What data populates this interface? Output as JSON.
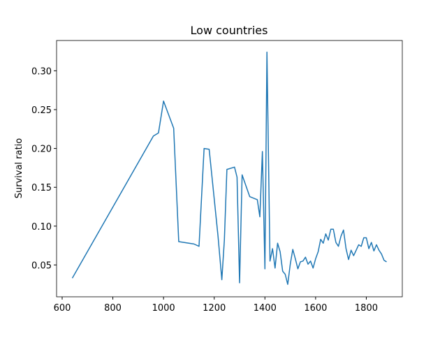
{
  "chart_data": {
    "type": "line",
    "title": "Low countries",
    "ylabel": "Survival ratio",
    "x": [
      640,
      960,
      980,
      1000,
      1040,
      1060,
      1120,
      1140,
      1160,
      1180,
      1215,
      1230,
      1240,
      1250,
      1280,
      1290,
      1300,
      1310,
      1340,
      1370,
      1380,
      1390,
      1400,
      1408,
      1420,
      1430,
      1440,
      1450,
      1460,
      1470,
      1480,
      1490,
      1500,
      1510,
      1520,
      1530,
      1540,
      1550,
      1560,
      1570,
      1580,
      1590,
      1600,
      1610,
      1620,
      1630,
      1640,
      1650,
      1660,
      1670,
      1680,
      1690,
      1700,
      1710,
      1720,
      1730,
      1740,
      1750,
      1760,
      1770,
      1780,
      1790,
      1800,
      1810,
      1820,
      1830,
      1840,
      1850,
      1860,
      1870,
      1880
    ],
    "series": [
      {
        "color": "#1f77b4",
        "values": [
          0.033,
          0.216,
          0.22,
          0.261,
          0.226,
          0.08,
          0.077,
          0.074,
          0.2,
          0.199,
          0.087,
          0.031,
          0.082,
          0.173,
          0.176,
          0.163,
          0.027,
          0.166,
          0.138,
          0.134,
          0.112,
          0.196,
          0.045,
          0.324,
          0.055,
          0.071,
          0.046,
          0.078,
          0.067,
          0.042,
          0.038,
          0.025,
          0.051,
          0.07,
          0.058,
          0.045,
          0.054,
          0.055,
          0.06,
          0.051,
          0.055,
          0.046,
          0.058,
          0.067,
          0.083,
          0.078,
          0.09,
          0.082,
          0.096,
          0.096,
          0.079,
          0.074,
          0.087,
          0.095,
          0.071,
          0.057,
          0.069,
          0.062,
          0.069,
          0.076,
          0.074,
          0.085,
          0.085,
          0.071,
          0.079,
          0.068,
          0.076,
          0.069,
          0.064,
          0.056,
          0.054
        ]
      }
    ],
    "xlim": [
      578,
      1942
    ],
    "ylim": [
      0.009,
      0.339
    ],
    "xticks": [
      600,
      800,
      1000,
      1200,
      1400,
      1600,
      1800
    ],
    "yticks": [
      0.05,
      {
        "value": 0.1,
        "label": "0.10"
      },
      0.15,
      {
        "value": 0.2,
        "label": "0.20"
      },
      0.25,
      {
        "value": 0.3,
        "label": "0.30"
      }
    ]
  }
}
